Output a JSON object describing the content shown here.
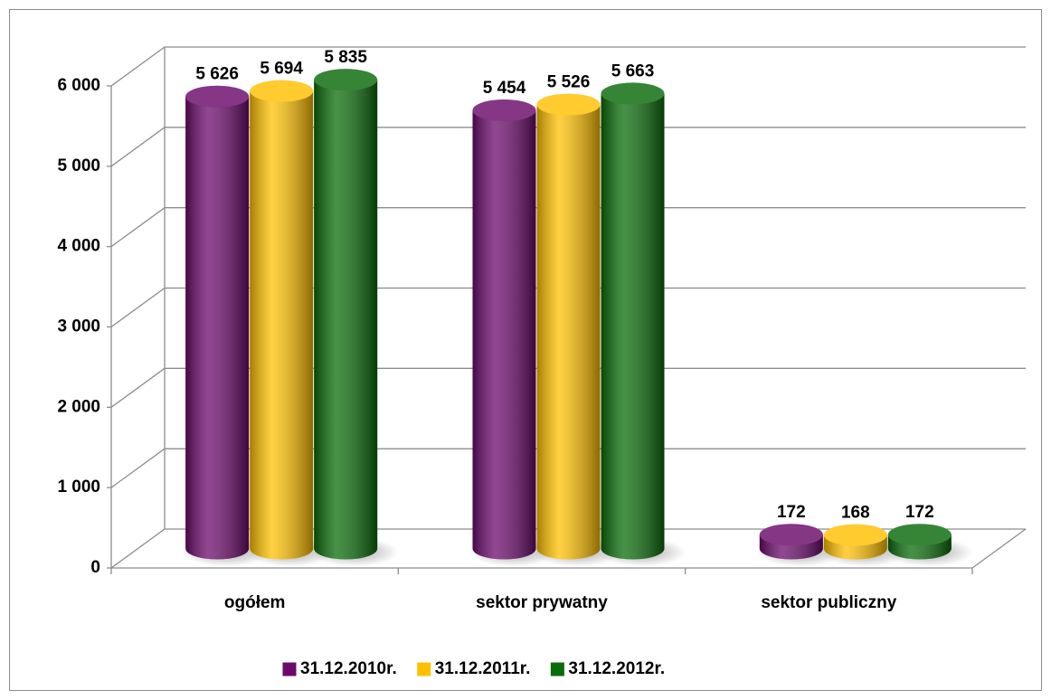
{
  "chart_data": {
    "type": "bar3d",
    "categories": [
      "ogółem",
      "sektor prywatny",
      "sektor publiczny"
    ],
    "series": [
      {
        "name": "31.12.2010r.",
        "color": "#6b0a6b",
        "values": [
          5626,
          5454,
          172
        ],
        "value_labels": [
          "5 626",
          "5 454",
          "172"
        ]
      },
      {
        "name": "31.12.2011r.",
        "color": "#ffc000",
        "values": [
          5694,
          5526,
          168
        ],
        "value_labels": [
          "5 694",
          "5 526",
          "168"
        ]
      },
      {
        "name": "31.12.2012r.",
        "color": "#0a6b0a",
        "values": [
          5835,
          5663,
          172
        ],
        "value_labels": [
          "5 835",
          "5 663",
          "172"
        ]
      }
    ],
    "ylim": [
      0,
      6000
    ],
    "yticks": [
      {
        "value": 0,
        "label": "0"
      },
      {
        "value": 1000,
        "label": "1 000"
      },
      {
        "value": 2000,
        "label": "2 000"
      },
      {
        "value": 3000,
        "label": "3 000"
      },
      {
        "value": 4000,
        "label": "4 000"
      },
      {
        "value": 5000,
        "label": "5 000"
      },
      {
        "value": 6000,
        "label": "6 000"
      }
    ],
    "grid": true,
    "legend": "bottom"
  }
}
